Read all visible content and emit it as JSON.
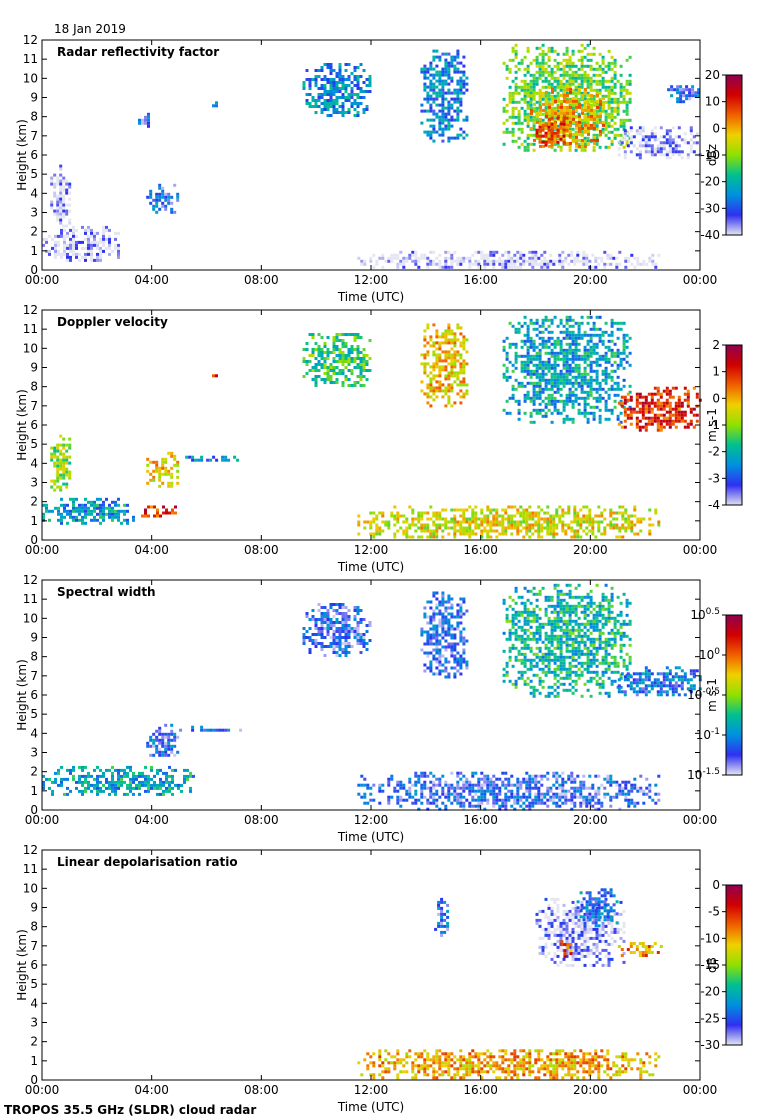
{
  "date_label": "18 Jan 2019",
  "footer_label": "TROPOS 35.5 GHz (SLDR) cloud radar",
  "chart_data": [
    {
      "type": "heatmap",
      "title": "Radar reflectivity factor",
      "xlabel": "Time (UTC)",
      "ylabel": "Height (km)",
      "xlim": [
        0,
        24
      ],
      "ylim": [
        0,
        12
      ],
      "xticks": [
        "00:00",
        "04:00",
        "08:00",
        "12:00",
        "16:00",
        "20:00",
        "00:00"
      ],
      "yticks": [
        0,
        1,
        2,
        3,
        4,
        5,
        6,
        7,
        8,
        9,
        10,
        11,
        12
      ],
      "colorbar": {
        "label": "dBz",
        "range": [
          -40,
          20
        ],
        "ticks": [
          "20",
          "10",
          "0",
          "-10",
          "-20",
          "-30",
          "-40"
        ],
        "colors": [
          "#e6e6f2",
          "#3030f0",
          "#0090e0",
          "#00c090",
          "#90e000",
          "#f0d000",
          "#f06000",
          "#d00000",
          "#900050"
        ]
      },
      "regions": [
        {
          "t": [
            0.0,
            2.8
          ],
          "h": [
            0.5,
            2.3
          ],
          "v": -40
        },
        {
          "t": [
            0.3,
            1.0
          ],
          "h": [
            2.3,
            5.5
          ],
          "v": -40
        },
        {
          "t": [
            3.8,
            5.0
          ],
          "h": [
            3.0,
            4.5
          ],
          "v": -30
        },
        {
          "t": [
            6.2,
            6.4
          ],
          "h": [
            8.5,
            8.8
          ],
          "v": -28
        },
        {
          "t": [
            3.5,
            4.0
          ],
          "h": [
            7.5,
            8.2
          ],
          "v": -30
        },
        {
          "t": [
            9.5,
            12.0
          ],
          "h": [
            8.0,
            10.8
          ],
          "v": -25
        },
        {
          "t": [
            13.8,
            15.5
          ],
          "h": [
            6.8,
            11.5
          ],
          "v": -26
        },
        {
          "t": [
            16.8,
            21.5
          ],
          "h": [
            6.2,
            11.8
          ],
          "v": -12
        },
        {
          "t": [
            17.8,
            20.5
          ],
          "h": [
            6.5,
            9.5
          ],
          "v": 0
        },
        {
          "t": [
            18.0,
            19.3
          ],
          "h": [
            6.5,
            8.0
          ],
          "v": 6
        },
        {
          "t": [
            21.0,
            24.0
          ],
          "h": [
            5.8,
            7.5
          ],
          "v": -38
        },
        {
          "t": [
            22.8,
            24.0
          ],
          "h": [
            8.8,
            9.8
          ],
          "v": -30
        },
        {
          "t": [
            11.5,
            22.5
          ],
          "h": [
            0.1,
            1.0
          ],
          "v": -40
        }
      ]
    },
    {
      "type": "heatmap",
      "title": "Doppler velocity",
      "xlabel": "Time (UTC)",
      "ylabel": "Height (km)",
      "xlim": [
        0,
        24
      ],
      "ylim": [
        0,
        12
      ],
      "xticks": [
        "00:00",
        "04:00",
        "08:00",
        "12:00",
        "16:00",
        "20:00",
        "00:00"
      ],
      "yticks": [
        0,
        1,
        2,
        3,
        4,
        5,
        6,
        7,
        8,
        9,
        10,
        11,
        12
      ],
      "colorbar": {
        "label": "m s-1",
        "range": [
          -4,
          2
        ],
        "ticks": [
          "2",
          "1",
          "0",
          "-1",
          "-2",
          "-3",
          "-4"
        ],
        "colors": [
          "#e0e0f0",
          "#3030f0",
          "#0090e0",
          "#00c090",
          "#90e000",
          "#f0d000",
          "#f06000",
          "#d00000",
          "#900050"
        ]
      },
      "regions": [
        {
          "t": [
            0.0,
            3.3
          ],
          "h": [
            0.8,
            2.2
          ],
          "v": -2.3
        },
        {
          "t": [
            3.5,
            5.0
          ],
          "h": [
            1.2,
            1.8
          ],
          "v": 0.8
        },
        {
          "t": [
            0.3,
            1.0
          ],
          "h": [
            2.5,
            5.5
          ],
          "v": -1.0
        },
        {
          "t": [
            3.8,
            5.0
          ],
          "h": [
            2.8,
            4.6
          ],
          "v": -0.3
        },
        {
          "t": [
            5.0,
            7.3
          ],
          "h": [
            4.1,
            4.4
          ],
          "v": -2.5
        },
        {
          "t": [
            6.2,
            6.4
          ],
          "h": [
            8.5,
            8.8
          ],
          "v": 0.8
        },
        {
          "t": [
            9.5,
            12.0
          ],
          "h": [
            8.0,
            10.8
          ],
          "v": -1.5
        },
        {
          "t": [
            13.8,
            15.5
          ],
          "h": [
            7.0,
            11.3
          ],
          "v": -0.2
        },
        {
          "t": [
            16.8,
            21.5
          ],
          "h": [
            6.2,
            11.7
          ],
          "v": -2.2
        },
        {
          "t": [
            21.0,
            24.0
          ],
          "h": [
            5.8,
            8.0
          ],
          "v": 0.9
        },
        {
          "t": [
            11.5,
            22.5
          ],
          "h": [
            0.1,
            1.8
          ],
          "v": -0.5
        }
      ]
    },
    {
      "type": "heatmap",
      "title": "Spectral width",
      "xlabel": "Time (UTC)",
      "ylabel": "Height (km)",
      "xlim": [
        0,
        24
      ],
      "ylim": [
        0,
        12
      ],
      "xticks": [
        "00:00",
        "04:00",
        "08:00",
        "12:00",
        "16:00",
        "20:00",
        "00:00"
      ],
      "yticks": [
        0,
        1,
        2,
        3,
        4,
        5,
        6,
        7,
        8,
        9,
        10,
        11,
        12
      ],
      "colorbar": {
        "label": "m s-1",
        "range": [
          -1.5,
          0.5
        ],
        "ticks": [
          "10^0.5",
          "10^0",
          "10^-0.5",
          "10^-1",
          "10^-1.5"
        ],
        "colors": [
          "#e6e6f2",
          "#3030f0",
          "#0090e0",
          "#00c090",
          "#90e000",
          "#f0d000",
          "#f06000",
          "#d00000",
          "#900050"
        ]
      },
      "regions": [
        {
          "t": [
            0.0,
            5.5
          ],
          "h": [
            0.8,
            2.3
          ],
          "v": -0.9
        },
        {
          "t": [
            3.8,
            5.0
          ],
          "h": [
            2.8,
            4.5
          ],
          "v": -1.2
        },
        {
          "t": [
            5.0,
            7.3
          ],
          "h": [
            4.1,
            4.4
          ],
          "v": -1.2
        },
        {
          "t": [
            9.5,
            12.0
          ],
          "h": [
            8.0,
            10.8
          ],
          "v": -1.2
        },
        {
          "t": [
            13.8,
            15.5
          ],
          "h": [
            7.0,
            11.4
          ],
          "v": -1.2
        },
        {
          "t": [
            16.8,
            21.5
          ],
          "h": [
            6.0,
            11.8
          ],
          "v": -0.8
        },
        {
          "t": [
            21.0,
            24.0
          ],
          "h": [
            6.0,
            7.5
          ],
          "v": -1.1
        },
        {
          "t": [
            11.5,
            22.5
          ],
          "h": [
            0.1,
            2.0
          ],
          "v": -1.2
        }
      ]
    },
    {
      "type": "heatmap",
      "title": "Linear depolarisation ratio",
      "xlabel": "Time (UTC)",
      "ylabel": "Height (km)",
      "xlim": [
        0,
        24
      ],
      "ylim": [
        0,
        12
      ],
      "xticks": [
        "00:00",
        "04:00",
        "08:00",
        "12:00",
        "16:00",
        "20:00",
        "00:00"
      ],
      "yticks": [
        0,
        1,
        2,
        3,
        4,
        5,
        6,
        7,
        8,
        9,
        10,
        11,
        12
      ],
      "colorbar": {
        "label": "dB",
        "range": [
          -30,
          0
        ],
        "ticks": [
          "0",
          "-5",
          "-10",
          "-15",
          "-20",
          "-25",
          "-30"
        ],
        "colors": [
          "#e6e6f2",
          "#3030f0",
          "#0090e0",
          "#00c090",
          "#90e000",
          "#f0d000",
          "#f06000",
          "#d00000",
          "#900050"
        ]
      },
      "regions": [
        {
          "t": [
            14.3,
            14.8
          ],
          "h": [
            7.5,
            9.5
          ],
          "v": -25
        },
        {
          "t": [
            18.0,
            21.2
          ],
          "h": [
            6.0,
            9.5
          ],
          "v": -29
        },
        {
          "t": [
            19.5,
            21.0
          ],
          "h": [
            8.0,
            10.0
          ],
          "v": -24
        },
        {
          "t": [
            18.8,
            19.3
          ],
          "h": [
            6.5,
            7.3
          ],
          "v": -8
        },
        {
          "t": [
            21.0,
            22.6
          ],
          "h": [
            6.5,
            7.2
          ],
          "v": -9
        },
        {
          "t": [
            11.5,
            22.5
          ],
          "h": [
            0.1,
            1.6
          ],
          "v": -10
        }
      ]
    }
  ]
}
